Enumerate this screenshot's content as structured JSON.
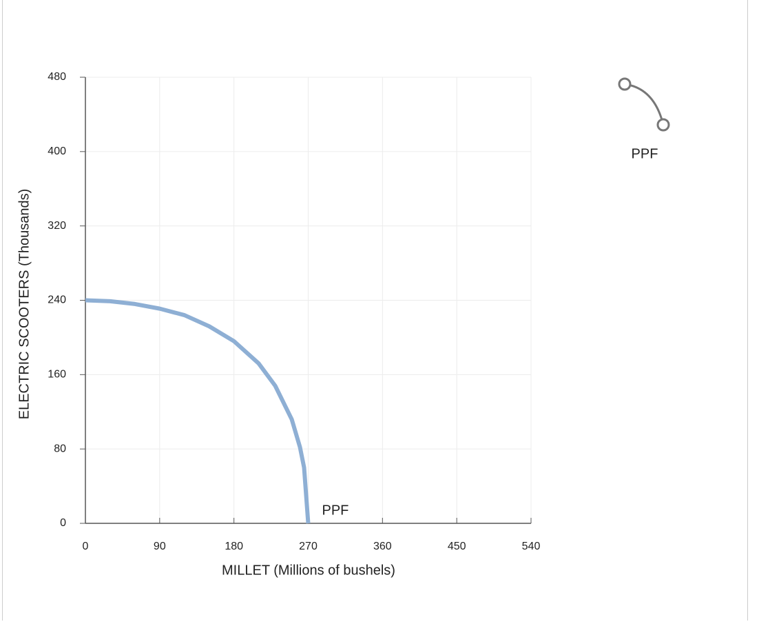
{
  "chart_data": {
    "type": "line",
    "x_label": "MILLET (Millions of bushels)",
    "y_label": "ELECTRIC SCOOTERS (Thousands)",
    "xlim": [
      0,
      540
    ],
    "ylim": [
      0,
      480
    ],
    "xticks": [
      0,
      90,
      180,
      270,
      360,
      450,
      540
    ],
    "yticks": [
      0,
      80,
      160,
      240,
      320,
      400,
      480
    ],
    "grid": true,
    "series": [
      {
        "name": "PPF",
        "color": "#8eafd4",
        "x": [
          0,
          30,
          60,
          90,
          120,
          150,
          180,
          210,
          230,
          250,
          260,
          265,
          270
        ],
        "values": [
          240,
          239,
          236,
          231,
          224,
          212,
          196,
          172,
          148,
          112,
          82,
          60,
          0
        ]
      }
    ]
  }
}
